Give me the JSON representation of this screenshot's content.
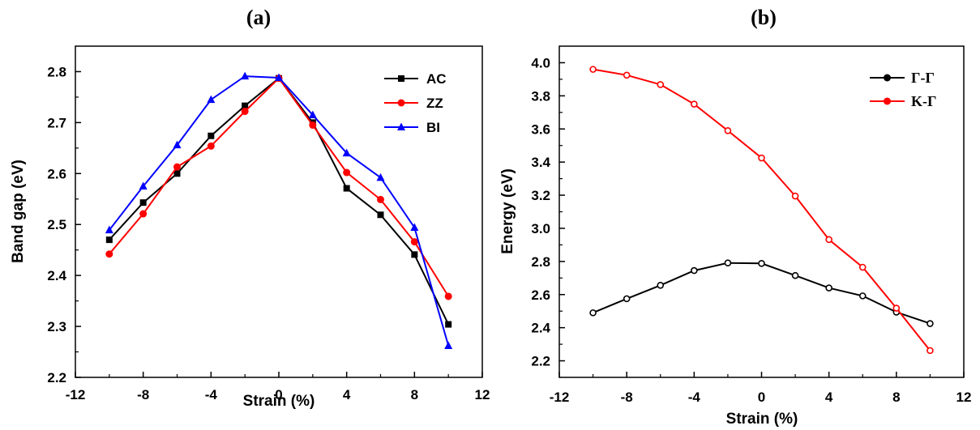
{
  "chart_data": [
    {
      "type": "line",
      "panel_label": "(a)",
      "xlabel": "Strain (%)",
      "ylabel": "Band gap (eV)",
      "xlim": [
        -12,
        12
      ],
      "ylim": [
        2.2,
        2.85
      ],
      "xticks": [
        -12,
        -8,
        -4,
        0,
        4,
        8,
        12
      ],
      "yticks": [
        2.2,
        2.3,
        2.4,
        2.5,
        2.6,
        2.7,
        2.8
      ],
      "ytick_labels": [
        "2.2",
        "2.3",
        "2.4",
        "2.5",
        "2.6",
        "2.7",
        "2.8"
      ],
      "legend_position": "top-right",
      "series": [
        {
          "name": "AC",
          "color": "#000000",
          "marker": "square",
          "x": [
            -10,
            -8,
            -6,
            -4,
            -2,
            0,
            2,
            4,
            6,
            8,
            10
          ],
          "y": [
            2.47,
            2.543,
            2.6,
            2.674,
            2.733,
            2.787,
            2.7,
            2.571,
            2.519,
            2.441,
            2.304
          ]
        },
        {
          "name": "ZZ",
          "color": "#ff0000",
          "marker": "circle",
          "x": [
            -10,
            -8,
            -6,
            -4,
            -2,
            0,
            2,
            4,
            6,
            8,
            10
          ],
          "y": [
            2.442,
            2.521,
            2.613,
            2.654,
            2.722,
            2.787,
            2.695,
            2.602,
            2.549,
            2.466,
            2.359
          ]
        },
        {
          "name": "BI",
          "color": "#0000ff",
          "marker": "triangle",
          "x": [
            -10,
            -8,
            -6,
            -4,
            -2,
            0,
            2,
            4,
            6,
            8,
            10
          ],
          "y": [
            2.489,
            2.575,
            2.656,
            2.745,
            2.791,
            2.788,
            2.715,
            2.64,
            2.592,
            2.494,
            2.262
          ]
        }
      ]
    },
    {
      "type": "line",
      "panel_label": "(b)",
      "xlabel": "Strain (%)",
      "ylabel": "Energy (eV)",
      "xlim": [
        -12,
        12
      ],
      "ylim": [
        2.1,
        4.1
      ],
      "xticks": [
        -12,
        -8,
        -4,
        0,
        4,
        8,
        12
      ],
      "yticks": [
        2.2,
        2.4,
        2.6,
        2.8,
        3.0,
        3.2,
        3.4,
        3.6,
        3.8,
        4.0
      ],
      "ytick_labels": [
        "2.2",
        "2.4",
        "2.6",
        "2.8",
        "3.0",
        "3.2",
        "3.4",
        "3.6",
        "3.8",
        "4.0"
      ],
      "legend_position": "top-right",
      "series": [
        {
          "name": "Γ-Γ",
          "color": "#000000",
          "marker": "circle",
          "x": [
            -10,
            -8,
            -6,
            -4,
            -2,
            0,
            2,
            4,
            6,
            8,
            10
          ],
          "y": [
            2.49,
            2.575,
            2.656,
            2.745,
            2.791,
            2.788,
            2.715,
            2.64,
            2.592,
            2.494,
            2.425
          ]
        },
        {
          "name": "K-Γ",
          "color": "#ff0000",
          "marker": "circle",
          "x": [
            -10,
            -8,
            -6,
            -4,
            -2,
            0,
            2,
            4,
            6,
            8,
            10
          ],
          "y": [
            3.96,
            3.925,
            3.868,
            3.75,
            3.59,
            3.425,
            3.195,
            2.932,
            2.765,
            2.518,
            2.262
          ]
        }
      ]
    }
  ]
}
